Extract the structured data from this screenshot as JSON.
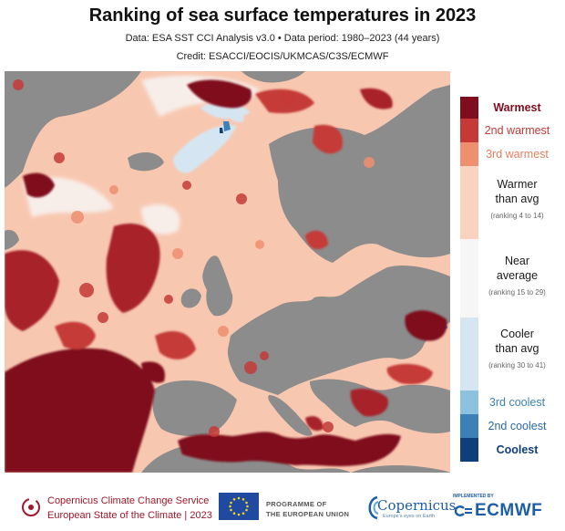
{
  "header": {
    "title": "Ranking of sea surface temperatures in 2023",
    "subtitle": "Data: ESA SST CCI Analysis v3.0 • Data period: 1980–2023 (44 years)",
    "credit": "Credit: ESACCI/EOCIS/UKMCAS/C3S/ECMWF"
  },
  "map": {
    "land_color": "#8c8c8c",
    "region": "North Atlantic, European seas and Mediterranean"
  },
  "legend": {
    "items": [
      {
        "key": "warmest",
        "label": "Warmest",
        "sub": "",
        "color": "#7f0d1d",
        "text_color": "#7f0d1d"
      },
      {
        "key": "2nd-warmest",
        "label": "2nd warmest",
        "sub": "",
        "color": "#c53a37",
        "text_color": "#c53a37"
      },
      {
        "key": "3rd-warmest",
        "label": "3rd warmest",
        "sub": "",
        "color": "#ee8f6f",
        "text_color": "#e3805f"
      },
      {
        "key": "warmer",
        "label": "Warmer\nthan avg",
        "sub": "(ranking 4 to 14)",
        "color": "#fad3c0",
        "text_color": "#333333"
      },
      {
        "key": "near",
        "label": "Near\naverage",
        "sub": "(ranking 15 to 29)",
        "color": "#f6f6f6",
        "text_color": "#333333"
      },
      {
        "key": "cooler",
        "label": "Cooler\nthan avg",
        "sub": "(ranking 30 to 41)",
        "color": "#d5e6f2",
        "text_color": "#333333"
      },
      {
        "key": "3rd-coolest",
        "label": "3rd coolest",
        "sub": "",
        "color": "#8cc1df",
        "text_color": "#3b83b9"
      },
      {
        "key": "2nd-coolest",
        "label": "2nd coolest",
        "sub": "",
        "color": "#3c80ba",
        "text_color": "#2a6aa6"
      },
      {
        "key": "coolest",
        "label": "Coolest",
        "sub": "",
        "color": "#0f3f7a",
        "text_color": "#0f3f7a"
      }
    ]
  },
  "footer": {
    "c3s_line1": "Copernicus Climate Change Service",
    "c3s_line2": "European State of the Climate | 2023",
    "eu_line1": "PROGRAMME OF",
    "eu_line2": "THE EUROPEAN UNION",
    "copernicus": "Copernicus",
    "copernicus_tagline": "Europe's eyes on Earth",
    "ecmwf_small": "IMPLEMENTED BY",
    "ecmwf": "ECMWF"
  }
}
